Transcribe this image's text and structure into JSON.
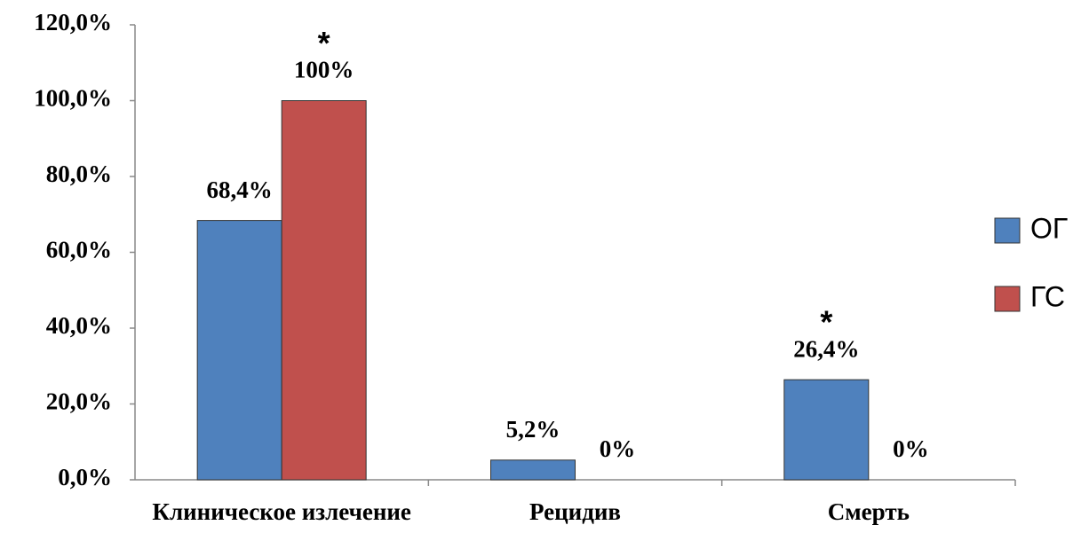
{
  "chart_data": {
    "type": "bar",
    "categories": [
      "Клиническое излечение",
      "Рецидив",
      "Смерть"
    ],
    "series": [
      {
        "name": "ОГ",
        "color": "#4f81bd",
        "values": [
          68.4,
          5.2,
          26.4
        ],
        "value_labels": [
          "68,4%",
          "5,2%",
          "26,4%"
        ]
      },
      {
        "name": "ГС",
        "color": "#c0504d",
        "values": [
          100,
          0,
          0
        ],
        "value_labels": [
          "100%",
          "0%",
          "0%"
        ]
      }
    ],
    "annotations": [
      {
        "text": "*",
        "category": "Клиническое излечение",
        "series": "ГС"
      },
      {
        "text": "*",
        "category": "Смерть",
        "series": "ОГ"
      }
    ],
    "ylim": [
      0,
      120
    ],
    "yticks": [
      {
        "value": 0,
        "label": "0,0%"
      },
      {
        "value": 20,
        "label": "20,0%"
      },
      {
        "value": 40,
        "label": "40,0%"
      },
      {
        "value": 60,
        "label": "60,0%"
      },
      {
        "value": 80,
        "label": "80,0%"
      },
      {
        "value": 100,
        "label": "100,0%"
      },
      {
        "value": 120,
        "label": "120,0%"
      }
    ],
    "grid": false,
    "legend": "right"
  }
}
